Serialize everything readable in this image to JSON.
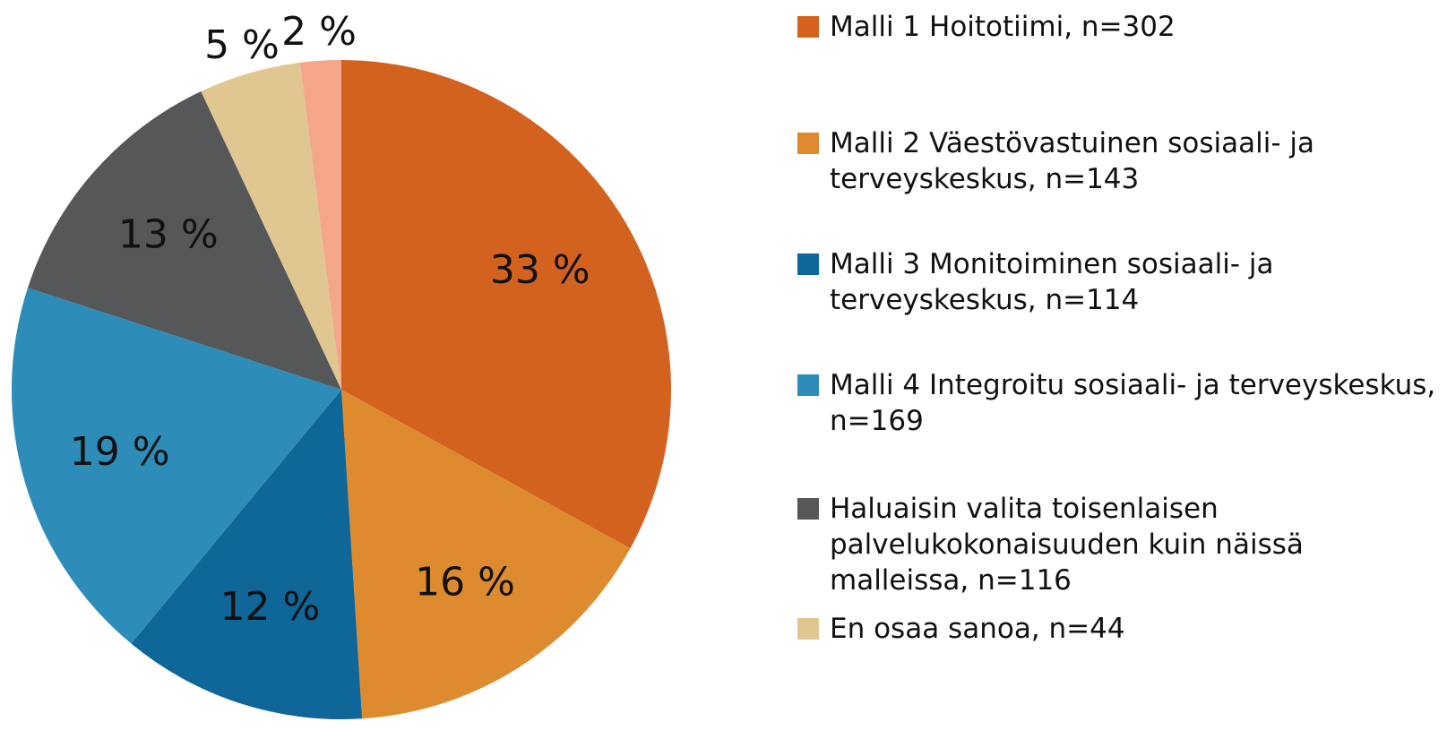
{
  "chart_data": {
    "type": "pie",
    "categories": [
      "Malli 1 Hoitotiimi, n=302",
      "Malli 2 Väestövastuinen sosiaali- ja terveyskeskus, n=143",
      "Malli 3 Monitoiminen sosiaali- ja terveyskeskus, n=114",
      "Malli 4 Integroitu sosiaali- ja terveyskeskus, n=169",
      "Haluaisin valita toisenlaisen palvelukokonaisuuden kuin näissä malleissa, n=116",
      "En osaa sanoa, n=44",
      null
    ],
    "values": [
      33,
      16,
      12,
      19,
      13,
      5,
      2
    ],
    "value_labels": [
      "33 %",
      "16 %",
      "12 %",
      "19 %",
      "13 %",
      "5 %",
      "2 %"
    ],
    "colors": [
      "#d4621f",
      "#de8b2f",
      "#0e6699",
      "#2e8cb8",
      "#555759",
      "#e0c792",
      "#f4a58a"
    ],
    "legend": "right"
  }
}
